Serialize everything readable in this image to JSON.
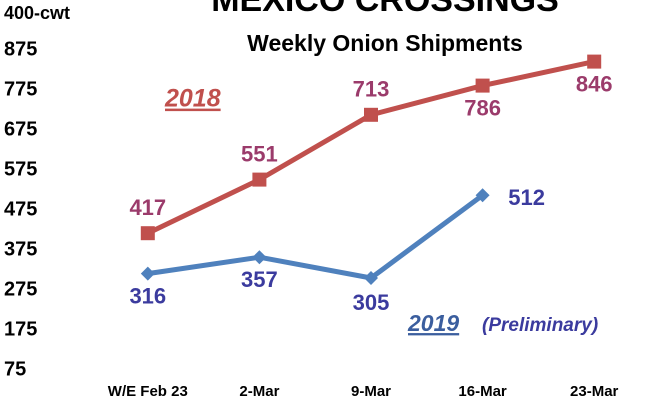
{
  "chart_data": {
    "type": "line",
    "title": "MEXICO CROSSINGS",
    "subtitle": "Weekly Onion Shipments",
    "y_label": "400-cwt",
    "categories": [
      "W/E Feb 23",
      "2-Mar",
      "9-Mar",
      "16-Mar",
      "23-Mar"
    ],
    "series": [
      {
        "name": "2018",
        "color": "#c0504d",
        "label_color": "#9b3b6b",
        "marker": "square",
        "values": [
          417,
          551,
          713,
          786,
          846
        ]
      },
      {
        "name": "2019",
        "color": "#4f81bd",
        "label_color": "#3b3b9e",
        "marker": "diamond",
        "values": [
          316,
          357,
          305,
          512,
          null
        ]
      }
    ],
    "annotation": "(Preliminary)",
    "ylim": [
      75,
      875
    ],
    "yticks": [
      75,
      175,
      275,
      375,
      475,
      575,
      675,
      775,
      875
    ],
    "grid": false
  }
}
